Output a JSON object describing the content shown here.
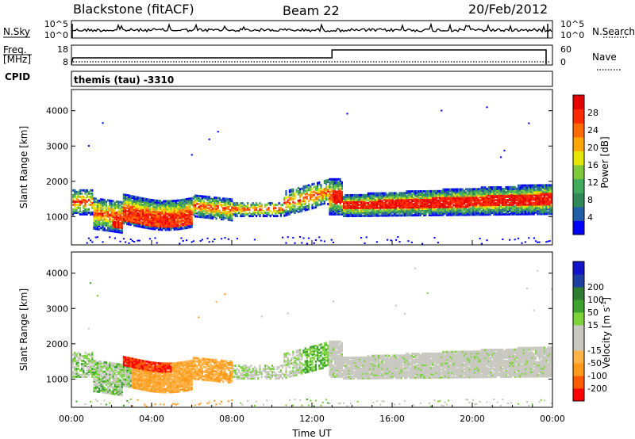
{
  "header": {
    "station": "Blackstone (fitACF)",
    "beam": "Beam 22",
    "date": "20/Feb/2012"
  },
  "noise_panel": {
    "left_label": "N.Sky",
    "right_label": "N.Search",
    "left_ticks": [
      "10^5",
      "10^0"
    ],
    "right_ticks": [
      "10^5",
      "10^0"
    ]
  },
  "freq_panel": {
    "left_label_top": "Freq.",
    "left_label_unit": "[MHz]",
    "right_label": "Nave",
    "left_ticks": [
      "18",
      "8"
    ],
    "right_ticks": [
      "60",
      "0"
    ]
  },
  "cpid_panel": {
    "left_label": "CPID",
    "text": "themis (tau) -3310"
  },
  "colors": {
    "power": [
      "#0000ff",
      "#225ea8",
      "#2e8b57",
      "#41ab5d",
      "#7ec83c",
      "#e6e600",
      "#ffa500",
      "#ff6a00",
      "#ff2a00",
      "#e60000"
    ],
    "velocity": [
      "#ff0000",
      "#ff5a00",
      "#ff9a1a",
      "#ffb347",
      "#c8c8c0",
      "#c8c8c0",
      "#7ed33c",
      "#3ca32d",
      "#2e7d32",
      "#1e3fa0",
      "#1212c8"
    ]
  },
  "chart_data": [
    {
      "type": "heatmap",
      "name": "power",
      "ylabel": "Slant Range [km]",
      "y_ticks": [
        1000,
        2000,
        3000,
        4000
      ],
      "ylim": [
        200,
        4600
      ],
      "colorbar": {
        "label": "Power [dB]",
        "ticks": [
          4,
          8,
          12,
          16,
          20,
          24,
          28
        ],
        "range": [
          0,
          32
        ]
      }
    },
    {
      "type": "heatmap",
      "name": "velocity",
      "ylabel": "Slant Range [km]",
      "y_ticks": [
        1000,
        2000,
        3000,
        4000
      ],
      "ylim": [
        200,
        4600
      ],
      "xlabel": "Time UT",
      "x_ticks": [
        "00:00",
        "04:00",
        "08:00",
        "12:00",
        "16:00",
        "20:00",
        "00:00"
      ],
      "xlim_hours": [
        0,
        24
      ],
      "colorbar": {
        "label": "Velocity [m s",
        "label_sup": "-1",
        "label_end": "]",
        "ticks": [
          "-200",
          "-100",
          "-50",
          "-15",
          "15",
          "50",
          "100",
          "200"
        ]
      }
    }
  ]
}
